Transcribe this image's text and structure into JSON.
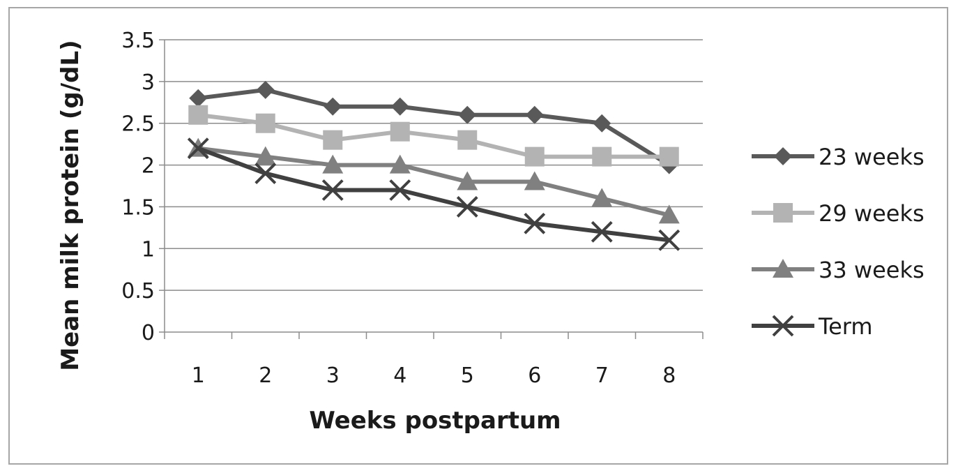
{
  "chart_data": {
    "type": "line",
    "xlabel": "Weeks postpartum",
    "ylabel": "Mean milk protein (g/dL)",
    "categories": [
      "1",
      "2",
      "3",
      "4",
      "5",
      "6",
      "7",
      "8"
    ],
    "ylim": [
      0,
      3.5
    ],
    "yticks": [
      "0",
      "0.5",
      "1",
      "1.5",
      "2",
      "2.5",
      "3",
      "3.5"
    ],
    "grid": true,
    "legend_position": "right",
    "series": [
      {
        "name": "23 weeks",
        "marker": "diamond",
        "color": "#595959",
        "values": [
          2.8,
          2.9,
          2.7,
          2.7,
          2.6,
          2.6,
          2.5,
          2.0
        ]
      },
      {
        "name": "29 weeks",
        "marker": "square",
        "color": "#b3b3b3",
        "values": [
          2.6,
          2.5,
          2.3,
          2.4,
          2.3,
          2.1,
          2.1,
          2.1
        ]
      },
      {
        "name": "33 weeks",
        "marker": "triangle",
        "color": "#808080",
        "values": [
          2.2,
          2.1,
          2.0,
          2.0,
          1.8,
          1.8,
          1.6,
          1.4
        ]
      },
      {
        "name": "Term",
        "marker": "x",
        "color": "#404040",
        "values": [
          2.2,
          1.9,
          1.7,
          1.7,
          1.5,
          1.3,
          1.2,
          1.1
        ]
      }
    ]
  }
}
